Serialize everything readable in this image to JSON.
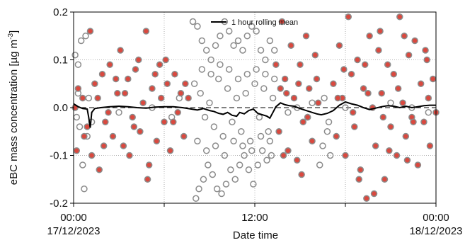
{
  "chart_data": {
    "type": "scatter",
    "title": "",
    "xlabel": "Date time",
    "ylabel_main": "eBC mass concentration [µg m",
    "ylabel_sup": "-3",
    "ylabel_tail": "]",
    "xlim_hours": [
      0,
      24
    ],
    "ylim": [
      -0.2,
      0.2
    ],
    "grid": true,
    "legend_position": "top-center",
    "x_ticks": [
      {
        "hour": 0,
        "line1": "00:00",
        "line2": "17/12/2023"
      },
      {
        "hour": 12,
        "line1": "12:00",
        "line2": ""
      },
      {
        "hour": 24,
        "line1": "00:00",
        "line2": "18/12/2023"
      }
    ],
    "y_ticks": [
      {
        "value": -0.2,
        "label": "-0.2"
      },
      {
        "value": -0.1,
        "label": "-0.1"
      },
      {
        "value": 0.0,
        "label": "0.0"
      },
      {
        "value": 0.1,
        "label": "0.1"
      },
      {
        "value": 0.2,
        "label": "0.2"
      }
    ],
    "legend": [
      {
        "label": "1 hour rolling mean",
        "color": "#000000"
      }
    ],
    "series": [
      {
        "marker": "open-circle",
        "color": "#8c8c8c",
        "points": [
          [
            0.1,
            0.11
          ],
          [
            0.3,
            0.09
          ],
          [
            0.5,
            0.14
          ],
          [
            0.8,
            0.15
          ],
          [
            0.4,
            -0.04
          ],
          [
            0.6,
            -0.12
          ],
          [
            0.7,
            -0.17
          ],
          [
            0.2,
            -0.02
          ],
          [
            0.9,
            -0.06
          ],
          [
            1.0,
            0.02
          ],
          [
            0.3,
            0.03
          ],
          [
            1.2,
            -0.03
          ],
          [
            7.9,
            0.18
          ],
          [
            8.2,
            0.17
          ],
          [
            8.5,
            0.14
          ],
          [
            8.8,
            0.12
          ],
          [
            9.1,
            0.1
          ],
          [
            9.4,
            0.13
          ],
          [
            9.7,
            0.15
          ],
          [
            10.0,
            0.18
          ],
          [
            10.3,
            0.16
          ],
          [
            10.6,
            0.13
          ],
          [
            10.9,
            0.14
          ],
          [
            11.2,
            0.12
          ],
          [
            11.5,
            0.15
          ],
          [
            11.8,
            0.17
          ],
          [
            12.1,
            0.16
          ],
          [
            12.4,
            0.12
          ],
          [
            12.7,
            0.1
          ],
          [
            13.0,
            0.14
          ],
          [
            13.3,
            0.12
          ],
          [
            8.1,
            -0.19
          ],
          [
            8.3,
            -0.17
          ],
          [
            8.6,
            -0.15
          ],
          [
            8.9,
            -0.12
          ],
          [
            9.2,
            -0.14
          ],
          [
            9.5,
            -0.17
          ],
          [
            9.8,
            -0.18
          ],
          [
            10.1,
            -0.16
          ],
          [
            10.4,
            -0.13
          ],
          [
            10.7,
            -0.15
          ],
          [
            11.0,
            -0.12
          ],
          [
            11.3,
            -0.1
          ],
          [
            11.6,
            -0.13
          ],
          [
            11.9,
            -0.16
          ],
          [
            12.2,
            -0.12
          ],
          [
            12.5,
            -0.09
          ],
          [
            12.8,
            -0.11
          ],
          [
            13.1,
            -0.1
          ],
          [
            8.0,
            0.05
          ],
          [
            8.4,
            0.03
          ],
          [
            8.7,
            -0.02
          ],
          [
            9.0,
            0.01
          ],
          [
            9.3,
            -0.04
          ],
          [
            9.6,
            0.06
          ],
          [
            9.9,
            -0.06
          ],
          [
            10.2,
            0.04
          ],
          [
            10.5,
            -0.03
          ],
          [
            10.8,
            0.02
          ],
          [
            11.1,
            -0.05
          ],
          [
            11.4,
            0.03
          ],
          [
            11.7,
            -0.07
          ],
          [
            12.0,
            0.05
          ],
          [
            12.3,
            -0.02
          ],
          [
            12.6,
            0.04
          ],
          [
            12.9,
            -0.05
          ],
          [
            13.2,
            0.02
          ],
          [
            8.2,
            -0.07
          ],
          [
            8.5,
            0.08
          ],
          [
            8.8,
            -0.09
          ],
          [
            9.1,
            0.07
          ],
          [
            9.4,
            -0.08
          ],
          [
            9.7,
            0.09
          ],
          [
            10.0,
            -0.1
          ],
          [
            10.3,
            0.08
          ],
          [
            10.6,
            -0.07
          ],
          [
            10.9,
            0.06
          ],
          [
            11.2,
            -0.08
          ],
          [
            11.5,
            0.07
          ],
          [
            11.8,
            -0.09
          ],
          [
            12.1,
            0.08
          ],
          [
            12.4,
            -0.06
          ],
          [
            12.7,
            0.07
          ],
          [
            13.0,
            -0.07
          ],
          [
            13.3,
            0.06
          ],
          [
            16.3,
            -0.12
          ],
          [
            16.5,
            -0.08
          ],
          [
            16.8,
            -0.05
          ],
          [
            17.0,
            -0.1
          ],
          [
            16.6,
            0.02
          ],
          [
            16.9,
            -0.03
          ],
          [
            15.5,
            -0.02
          ],
          [
            15.8,
            0.01
          ],
          [
            14.2,
            -0.01
          ],
          [
            14.8,
            0.0
          ],
          [
            3.0,
            -0.01
          ],
          [
            5.2,
            0.0
          ],
          [
            7.0,
            0.02
          ],
          [
            6.5,
            -0.02
          ],
          [
            18.0,
            0.0
          ],
          [
            21.0,
            0.01
          ],
          [
            23.5,
            -0.01
          ],
          [
            22.4,
            0.0
          ]
        ]
      },
      {
        "marker": "filled-circle",
        "color": "#d9493f",
        "edge": "#8c8c8c",
        "points": [
          [
            0.1,
            0.0
          ],
          [
            0.2,
            -0.09
          ],
          [
            0.3,
            0.04
          ],
          [
            0.6,
            0.02
          ],
          [
            0.9,
            -0.04
          ],
          [
            1.1,
            0.16
          ],
          [
            1.2,
            -0.1
          ],
          [
            1.4,
            0.05
          ],
          [
            1.7,
            -0.13
          ],
          [
            1.9,
            0.07
          ],
          [
            2.1,
            -0.03
          ],
          [
            2.4,
            0.09
          ],
          [
            2.6,
            -0.06
          ],
          [
            2.9,
            0.03
          ],
          [
            3.1,
            0.12
          ],
          [
            3.3,
            -0.08
          ],
          [
            3.6,
            0.06
          ],
          [
            3.9,
            -0.02
          ],
          [
            4.1,
            0.08
          ],
          [
            4.4,
            -0.05
          ],
          [
            4.6,
            0.01
          ],
          [
            4.8,
            0.16
          ],
          [
            5.0,
            -0.12
          ],
          [
            5.2,
            0.04
          ],
          [
            5.5,
            -0.07
          ],
          [
            5.7,
            0.09
          ],
          [
            6.0,
            -0.03
          ],
          [
            6.2,
            0.05
          ],
          [
            6.4,
            -0.09
          ],
          [
            6.7,
            0.07
          ],
          [
            6.9,
            -0.01
          ],
          [
            7.1,
            0.03
          ],
          [
            7.3,
            -0.06
          ],
          [
            7.6,
            0.02
          ],
          [
            1.6,
            0.02
          ],
          [
            2.3,
            -0.01
          ],
          [
            3.4,
            0.03
          ],
          [
            4.0,
            -0.04
          ],
          [
            5.8,
            0.02
          ],
          [
            6.6,
            -0.03
          ],
          [
            7.4,
            0.05
          ],
          [
            0.7,
            -0.06
          ],
          [
            2.8,
            0.06
          ],
          [
            4.3,
            0.1
          ],
          [
            5.4,
            0.07
          ],
          [
            6.1,
            0.1
          ],
          [
            3.7,
            -0.1
          ],
          [
            4.9,
            -0.15
          ],
          [
            2.0,
            -0.08
          ],
          [
            13.4,
            0.09
          ],
          [
            13.6,
            -0.05
          ],
          [
            13.8,
            0.18
          ],
          [
            14.0,
            0.06
          ],
          [
            14.2,
            -0.09
          ],
          [
            14.4,
            0.13
          ],
          [
            14.6,
            0.02
          ],
          [
            14.8,
            -0.11
          ],
          [
            15.0,
            0.09
          ],
          [
            15.2,
            -0.03
          ],
          [
            15.4,
            0.15
          ],
          [
            15.6,
            0.04
          ],
          [
            15.8,
            -0.07
          ],
          [
            16.0,
            0.11
          ],
          [
            16.2,
            0.01
          ],
          [
            14.1,
            0.03
          ],
          [
            14.9,
            0.05
          ],
          [
            15.5,
            -0.02
          ],
          [
            13.9,
            -0.1
          ],
          [
            15.1,
            -0.14
          ],
          [
            13.7,
            0.04
          ],
          [
            16.1,
            0.06
          ],
          [
            17.2,
            0.05
          ],
          [
            17.4,
            -0.06
          ],
          [
            17.6,
            0.13
          ],
          [
            17.8,
            0.02
          ],
          [
            18.0,
            -0.1
          ],
          [
            18.2,
            0.19
          ],
          [
            18.4,
            0.07
          ],
          [
            18.6,
            -0.04
          ],
          [
            18.8,
            0.1
          ],
          [
            19.0,
            -0.13
          ],
          [
            19.2,
            0.04
          ],
          [
            19.4,
            -0.19
          ],
          [
            19.6,
            0.15
          ],
          [
            19.8,
            0.0
          ],
          [
            20.0,
            -0.08
          ],
          [
            20.2,
            0.12
          ],
          [
            20.4,
            0.03
          ],
          [
            20.6,
            -0.15
          ],
          [
            20.8,
            0.09
          ],
          [
            21.0,
            -0.04
          ],
          [
            21.2,
            0.07
          ],
          [
            21.4,
            -0.1
          ],
          [
            21.6,
            0.19
          ],
          [
            21.8,
            0.01
          ],
          [
            22.0,
            -0.06
          ],
          [
            22.2,
            0.11
          ],
          [
            22.4,
            -0.02
          ],
          [
            22.6,
            0.14
          ],
          [
            22.8,
            -0.12
          ],
          [
            23.0,
            0.05
          ],
          [
            23.2,
            -0.03
          ],
          [
            23.4,
            0.1
          ],
          [
            23.6,
            -0.08
          ],
          [
            23.8,
            0.06
          ],
          [
            24.0,
            -0.01
          ],
          [
            17.5,
            0.02
          ],
          [
            18.5,
            -0.01
          ],
          [
            19.5,
            0.03
          ],
          [
            20.5,
            -0.02
          ],
          [
            21.5,
            0.04
          ],
          [
            22.5,
            -0.03
          ],
          [
            23.5,
            0.02
          ],
          [
            17.9,
            0.08
          ],
          [
            19.3,
            0.09
          ],
          [
            20.9,
            -0.09
          ],
          [
            22.1,
            -0.11
          ],
          [
            23.3,
            0.12
          ],
          [
            18.9,
            -0.15
          ],
          [
            20.3,
            0.16
          ],
          [
            21.9,
            0.15
          ],
          [
            19.9,
            -0.18
          ]
        ]
      }
    ],
    "rolling_mean": {
      "color": "#000000",
      "x": [
        0.0,
        0.3,
        0.6,
        0.9,
        1.0,
        1.1,
        1.2,
        1.4,
        1.8,
        2.4,
        3.0,
        3.6,
        4.2,
        4.8,
        5.4,
        6.0,
        6.6,
        7.2,
        7.8,
        8.2,
        8.6,
        9.0,
        9.3,
        9.6,
        9.9,
        10.2,
        10.5,
        10.8,
        11.0,
        11.3,
        11.6,
        11.9,
        12.2,
        12.5,
        12.8,
        13.0,
        13.2,
        13.4,
        13.7,
        14.0,
        14.3,
        14.6,
        15.0,
        15.4,
        15.8,
        16.1,
        16.4,
        16.8,
        17.2,
        17.6,
        18.0,
        18.4,
        18.8,
        19.2,
        19.6,
        20.0,
        20.4,
        20.8,
        21.2,
        21.6,
        22.0,
        22.4,
        22.8,
        23.2,
        23.6,
        24.0
      ],
      "y": [
        0.008,
        0.002,
        -0.002,
        -0.003,
        -0.02,
        -0.042,
        -0.01,
        -0.002,
        0.0,
        0.002,
        0.003,
        0.002,
        0.0,
        -0.001,
        0.001,
        0.002,
        0.002,
        0.0,
        -0.003,
        -0.005,
        -0.002,
        -0.006,
        -0.008,
        -0.012,
        -0.014,
        -0.01,
        -0.016,
        -0.018,
        -0.01,
        -0.013,
        -0.006,
        -0.003,
        -0.012,
        -0.015,
        -0.018,
        -0.022,
        -0.01,
        0.002,
        0.01,
        0.006,
        0.004,
        0.003,
        -0.002,
        -0.006,
        -0.01,
        -0.013,
        -0.015,
        -0.012,
        -0.006,
        0.005,
        0.012,
        0.008,
        0.005,
        0.0,
        -0.004,
        -0.001,
        0.002,
        0.004,
        0.003,
        0.0,
        0.003,
        0.0,
        0.002,
        0.004,
        0.005,
        0.005
      ]
    }
  }
}
